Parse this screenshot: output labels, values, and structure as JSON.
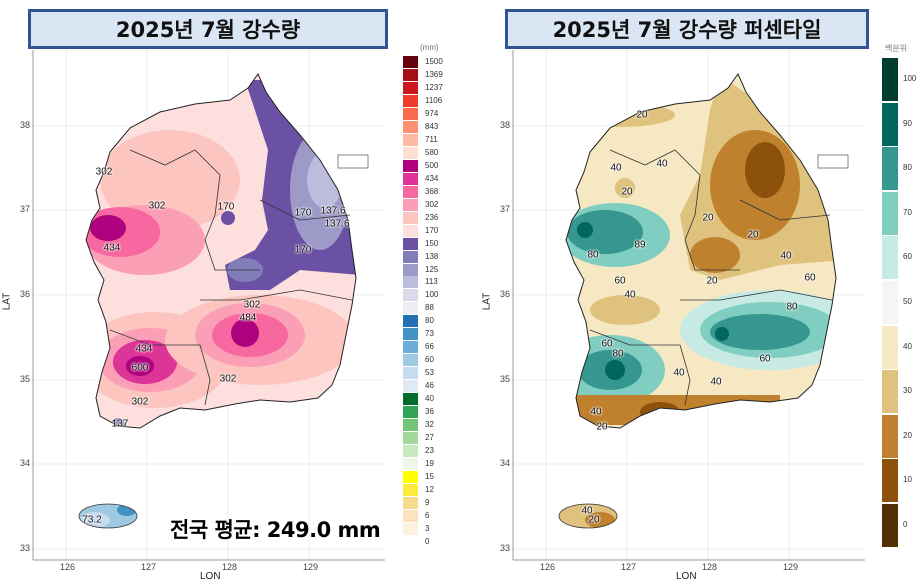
{
  "left_map": {
    "title": "2025년 7월 강수량",
    "xlabel": "LON",
    "ylabel": "LAT",
    "x_ticks": [
      "126",
      "127",
      "128",
      "129"
    ],
    "y_ticks": [
      "38",
      "37",
      "36",
      "35",
      "34",
      "33"
    ],
    "legend_unit": "(mm)",
    "legend": [
      {
        "label": "1500",
        "color": "#67000d"
      },
      {
        "label": "1369",
        "color": "#a50f15"
      },
      {
        "label": "1237",
        "color": "#cb181d"
      },
      {
        "label": "1106",
        "color": "#ef3b2c"
      },
      {
        "label": "974",
        "color": "#fb6a4a"
      },
      {
        "label": "843",
        "color": "#fc9272"
      },
      {
        "label": "711",
        "color": "#fcbba1"
      },
      {
        "label": "580",
        "color": "#fee0d2"
      },
      {
        "label": "500",
        "color": "#ae017e"
      },
      {
        "label": "434",
        "color": "#dd3497"
      },
      {
        "label": "368",
        "color": "#f768a1"
      },
      {
        "label": "302",
        "color": "#fa9fb5"
      },
      {
        "label": "236",
        "color": "#fcc5c0"
      },
      {
        "label": "170",
        "color": "#fde0dd"
      },
      {
        "label": "150",
        "color": "#6a51a3"
      },
      {
        "label": "138",
        "color": "#807dba"
      },
      {
        "label": "125",
        "color": "#9e9ac8"
      },
      {
        "label": "113",
        "color": "#bcbddc"
      },
      {
        "label": "100",
        "color": "#dadaeb"
      },
      {
        "label": "88",
        "color": "#efedf5"
      },
      {
        "label": "80",
        "color": "#2171b5"
      },
      {
        "label": "73",
        "color": "#4292c6"
      },
      {
        "label": "66",
        "color": "#6baed6"
      },
      {
        "label": "60",
        "color": "#9ecae1"
      },
      {
        "label": "53",
        "color": "#c6dbef"
      },
      {
        "label": "46",
        "color": "#deebf7"
      },
      {
        "label": "40",
        "color": "#006d2c"
      },
      {
        "label": "36",
        "color": "#31a354"
      },
      {
        "label": "32",
        "color": "#74c476"
      },
      {
        "label": "27",
        "color": "#a1d99b"
      },
      {
        "label": "23",
        "color": "#c7e9c0"
      },
      {
        "label": "19",
        "color": "#edf8e9"
      },
      {
        "label": "15",
        "color": "#ffff00"
      },
      {
        "label": "12",
        "color": "#fdea3a"
      },
      {
        "label": "9",
        "color": "#f6dc8a"
      },
      {
        "label": "6",
        "color": "#fbe3c0"
      },
      {
        "label": "3",
        "color": "#fdf1e0"
      },
      {
        "label": "0",
        "color": ""
      }
    ],
    "contour_labels": [
      "302",
      "302",
      "170",
      "170",
      "137.6",
      "137.6",
      "170",
      "434",
      "302",
      "484",
      "434",
      "600",
      "302",
      "302",
      "137",
      "73.2"
    ],
    "national_average": "전국 평균: 249.0 mm"
  },
  "right_map": {
    "title": "2025년 7월 강수량 퍼센타일",
    "xlabel": "LON",
    "ylabel": "LAT",
    "x_ticks": [
      "126",
      "127",
      "128",
      "129"
    ],
    "y_ticks": [
      "38",
      "37",
      "36",
      "35",
      "34",
      "33"
    ],
    "legend_unit": "백분위",
    "legend": [
      {
        "label": "100",
        "color": "#003c30"
      },
      {
        "label": "90",
        "color": "#01665e"
      },
      {
        "label": "80",
        "color": "#35978f"
      },
      {
        "label": "70",
        "color": "#80cdc1"
      },
      {
        "label": "60",
        "color": "#c7eae5"
      },
      {
        "label": "50",
        "color": "#f5f5f5"
      },
      {
        "label": "40",
        "color": "#f6e8c3"
      },
      {
        "label": "30",
        "color": "#dfc27d"
      },
      {
        "label": "20",
        "color": "#bf812d"
      },
      {
        "label": "10",
        "color": "#8c510a"
      },
      {
        "label": "0",
        "color": "#543005"
      }
    ],
    "contour_labels": [
      "20",
      "40",
      "40",
      "20",
      "20",
      "20",
      "89",
      "80",
      "40",
      "60",
      "20",
      "60",
      "40",
      "80",
      "60",
      "80",
      "60",
      "40",
      "40",
      "40",
      "20",
      "40",
      "20"
    ]
  }
}
